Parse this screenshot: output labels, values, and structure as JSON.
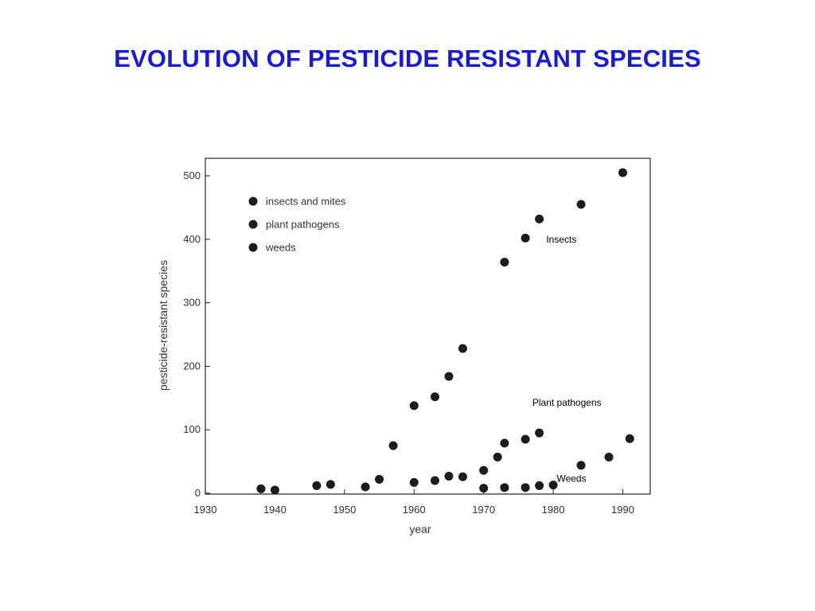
{
  "slide": {
    "title": "EVOLUTION OF PESTICIDE RESISTANT SPECIES"
  },
  "chart_data": {
    "type": "scatter",
    "title": "",
    "xlabel": "year",
    "ylabel": "pesticide-resistant species",
    "xlim": [
      1930,
      1992
    ],
    "ylim": [
      0,
      510
    ],
    "xticks": [
      1930,
      1940,
      1950,
      1960,
      1970,
      1980,
      1990
    ],
    "yticks": [
      0,
      100,
      200,
      300,
      400,
      500
    ],
    "xtick_labels": [
      "1930",
      "1940",
      "1950",
      "1960",
      "1970",
      "1980",
      "1990"
    ],
    "ytick_labels": [
      "0",
      "100",
      "200",
      "300",
      "400",
      "500"
    ],
    "grid": false,
    "legend_position": "top-left",
    "marker_color": "#1c1c1c",
    "series": [
      {
        "name": "insects and mites",
        "x": [
          1938,
          1946,
          1948,
          1955,
          1957,
          1960,
          1963,
          1965,
          1967,
          1973,
          1976,
          1978,
          1984,
          1990
        ],
        "y": [
          7,
          12,
          14,
          22,
          75,
          138,
          152,
          184,
          228,
          364,
          402,
          432,
          455,
          505
        ]
      },
      {
        "name": "plant pathogens",
        "x": [
          1940,
          1953,
          1960,
          1963,
          1965,
          1967,
          1970,
          1972,
          1973,
          1976,
          1978,
          1984
        ],
        "y": [
          5,
          10,
          17,
          20,
          27,
          26,
          36,
          57,
          79,
          85,
          95,
          44
        ]
      },
      {
        "name": "weeds",
        "x": [
          1970,
          1973,
          1976,
          1978,
          1980,
          1988,
          1991
        ],
        "y": [
          8,
          9,
          9,
          12,
          13,
          57,
          86
        ]
      }
    ],
    "annotations": [
      {
        "text": "Insects",
        "x": 1979,
        "y": 395
      },
      {
        "text": "Plant pathogens",
        "x": 1977,
        "y": 138
      },
      {
        "text": "Weeds",
        "x": 1980.5,
        "y": 18
      }
    ]
  }
}
